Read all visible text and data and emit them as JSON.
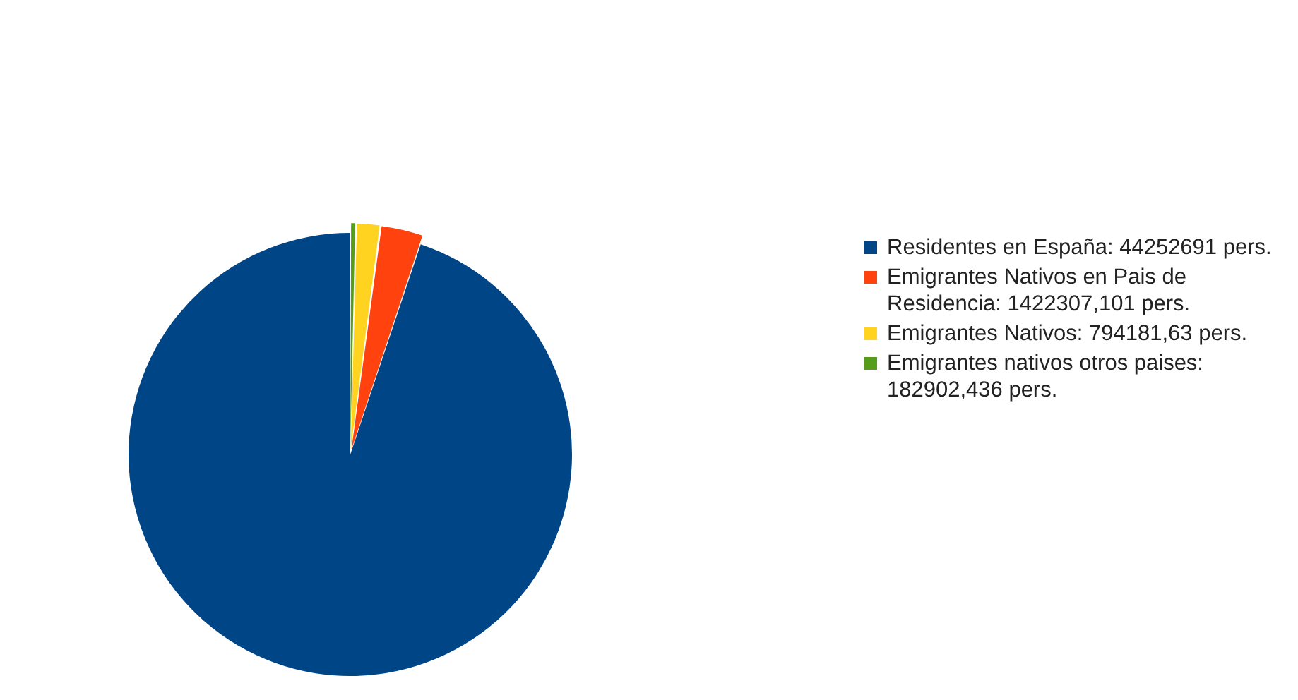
{
  "chart_data": {
    "type": "pie",
    "categories": [
      "Residentes en España: 44252691 pers.",
      "Emigrantes Nativos en Pais de Residencia: 1422307,101 pers.",
      "Emigrantes Nativos: 794181,63 pers.",
      "Emigrantes nativos otros paises: 182902,436 pers."
    ],
    "values": [
      44252691,
      1422307.101,
      794181.63,
      182902.436
    ],
    "colors": [
      "#004586",
      "#ff420e",
      "#ffd320",
      "#579d1c"
    ],
    "legend": "right"
  }
}
